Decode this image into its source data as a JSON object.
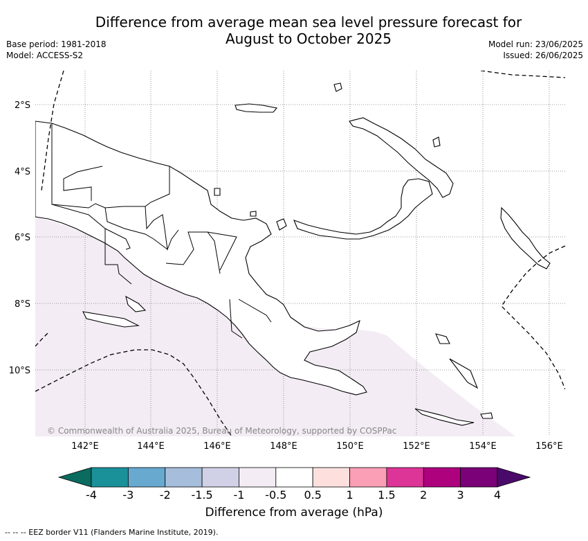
{
  "header": {
    "title_line1": "Difference from average mean sea level pressure forecast for",
    "title_line2": "August to October 2025",
    "base_period": "Base period: 1981-2018",
    "model": "Model: ACCESS-S2",
    "model_run": "Model run: 23/06/2025",
    "issued": "Issued: 26/06/2025"
  },
  "map": {
    "region": "Papua New Guinea",
    "lat_labels": [
      "2°S",
      "4°S",
      "6°S",
      "8°S",
      "10°S"
    ],
    "lon_labels": [
      "142°E",
      "144°E",
      "146°E",
      "148°E",
      "150°E",
      "152°E",
      "154°E",
      "156°E"
    ],
    "shaded_anomaly_color": "#f3ecf4",
    "copyright": "© Commonwealth of Australia 2025, Bureau of Meteorology, supported by COSPPac"
  },
  "colorbar": {
    "label": "Difference from average (hPa)",
    "tick_labels": [
      "-4",
      "-3",
      "-2",
      "-1.5",
      "-1",
      "-0.5",
      "0.5",
      "1",
      "1.5",
      "2",
      "3",
      "4"
    ],
    "low_extend_color": "#0a6b5f",
    "high_extend_color": "#4a0a6a",
    "colors": [
      "#1a9099",
      "#67a9cf",
      "#a6bddb",
      "#d0d1e6",
      "#f3ecf4",
      "#ffffff",
      "#fde0dd",
      "#fa9fb5",
      "#dd3497",
      "#ae017e",
      "#7a0177"
    ]
  },
  "footnote": {
    "text": "-- -- -- EEZ border V11 (Flanders Marine Institute, 2019)."
  }
}
